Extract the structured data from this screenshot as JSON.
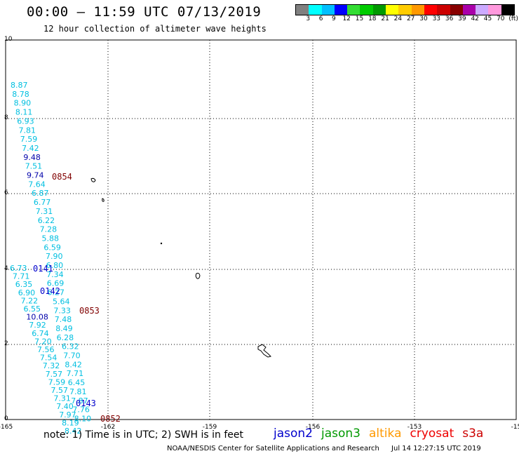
{
  "header": {
    "title": "00:00 – 11:59 UTC 07/13/2019",
    "subtitle": "12 hour collection of altimeter wave heights"
  },
  "colorbar": {
    "colors": [
      "#808080",
      "#00ffff",
      "#00bfff",
      "#0000ff",
      "#33dd33",
      "#00cc00",
      "#009900",
      "#ffff00",
      "#ffcc00",
      "#ff9900",
      "#ff0000",
      "#cc0000",
      "#880000",
      "#aa00aa",
      "#ccaaff",
      "#ff99dd",
      "#000000"
    ],
    "ticks": [
      "3",
      "6",
      "9",
      "12",
      "15",
      "18",
      "21",
      "24",
      "27",
      "30",
      "33",
      "36",
      "39",
      "42",
      "45",
      "70",
      "(ft)"
    ]
  },
  "axes": {
    "x_ticks": [
      "-165",
      "-162",
      "-159",
      "-156",
      "-153",
      "-15"
    ],
    "y_ticks": [
      "0",
      "2",
      "4",
      "6",
      "8",
      "10"
    ]
  },
  "passes": [
    {
      "label": "0854",
      "color": "#800000"
    },
    {
      "label": "0141",
      "color": "#0000cc"
    },
    {
      "label": "0142",
      "color": "#0000cc"
    },
    {
      "label": "0853",
      "color": "#800000"
    },
    {
      "label": "0143",
      "color": "#0000cc"
    },
    {
      "label": "0852",
      "color": "#800000"
    }
  ],
  "track_a": {
    "color": "#00bfe0",
    "values": [
      "8.87",
      "8.78",
      "8.90",
      "8.11",
      "6.93",
      "7.81",
      "7.59",
      "7.42",
      "9.48",
      "7.51",
      "9.74",
      "7.64",
      "6.87",
      "6.77",
      "7.31",
      "6.22",
      "7.28",
      "5.88",
      "6.59",
      "7.90",
      "6.80",
      "7.34",
      "6.69",
      "6.27",
      "5.64",
      "7.33",
      "7.48",
      "8.49",
      "6.28",
      "6.32",
      "7.70",
      "8.42",
      "7.71",
      "6.45",
      "7.81",
      "7.87",
      "7.76",
      "8.10"
    ],
    "highlight": [
      "9.48",
      "9.74"
    ]
  },
  "track_b": {
    "color": "#00bfe0",
    "values": [
      "6.73",
      "7.71",
      "6.35",
      "6.90",
      "7.22",
      "6.55",
      "10.08",
      "7.92",
      "6.74",
      "7.20",
      "7.56",
      "7.54",
      "7.32",
      "7.57",
      "7.59",
      "7.57",
      "7.31",
      "7.40",
      "7.97",
      "8.19",
      "8.42"
    ],
    "highlight": [
      "10.08"
    ]
  },
  "notes": {
    "text": "note:  1) Time is in UTC;  2) SWH is in feet"
  },
  "satellites": [
    {
      "name": "jason2",
      "color": "#0000cc"
    },
    {
      "name": "jason3",
      "color": "#009900"
    },
    {
      "name": "altika",
      "color": "#ff9900"
    },
    {
      "name": "cryosat",
      "color": "#ee0000"
    },
    {
      "name": "s3a",
      "color": "#cc0000"
    }
  ],
  "footer": {
    "agency": "NOAA/NESDIS Center for Satellite Applications and Research",
    "timestamp": "Jul 14 12:27:15 UTC 2019"
  }
}
